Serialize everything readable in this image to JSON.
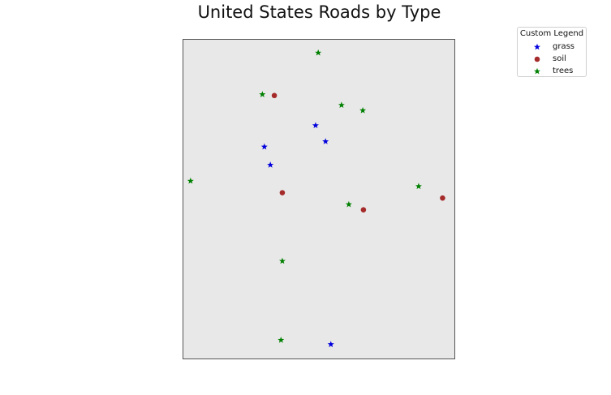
{
  "title": "United States Roads by Type",
  "legend": {
    "title": "Custom Legend",
    "items": [
      {
        "label": "grass",
        "marker": "star",
        "color": "#0000dd"
      },
      {
        "label": "soil",
        "marker": "circle",
        "color": "#a52a2a"
      },
      {
        "label": "trees",
        "marker": "star",
        "color": "#008000"
      }
    ]
  },
  "map": {
    "background": "#e8e8e8",
    "points": [
      {
        "type": "trees",
        "lon": -101.6,
        "lat": 48.7
      },
      {
        "type": "trees",
        "lon": -110.0,
        "lat": 44.8
      },
      {
        "type": "soil",
        "lon": -108.2,
        "lat": 44.7
      },
      {
        "type": "trees",
        "lon": -98.1,
        "lat": 43.8
      },
      {
        "type": "trees",
        "lon": -94.9,
        "lat": 43.3
      },
      {
        "type": "grass",
        "lon": -102.0,
        "lat": 41.9
      },
      {
        "type": "grass",
        "lon": -100.5,
        "lat": 40.4
      },
      {
        "type": "grass",
        "lon": -109.7,
        "lat": 39.9
      },
      {
        "type": "grass",
        "lon": -108.8,
        "lat": 38.2
      },
      {
        "type": "trees",
        "lon": -120.8,
        "lat": 36.7
      },
      {
        "type": "trees",
        "lon": -86.5,
        "lat": 36.2
      },
      {
        "type": "soil",
        "lon": -107.0,
        "lat": 35.6
      },
      {
        "type": "soil",
        "lon": -82.9,
        "lat": 35.1
      },
      {
        "type": "trees",
        "lon": -97.0,
        "lat": 34.5
      },
      {
        "type": "soil",
        "lon": -94.8,
        "lat": 34.0
      },
      {
        "type": "trees",
        "lon": -107.0,
        "lat": 29.2
      },
      {
        "type": "trees",
        "lon": -107.2,
        "lat": 21.8
      },
      {
        "type": "grass",
        "lon": -99.7,
        "lat": 21.4
      }
    ]
  }
}
